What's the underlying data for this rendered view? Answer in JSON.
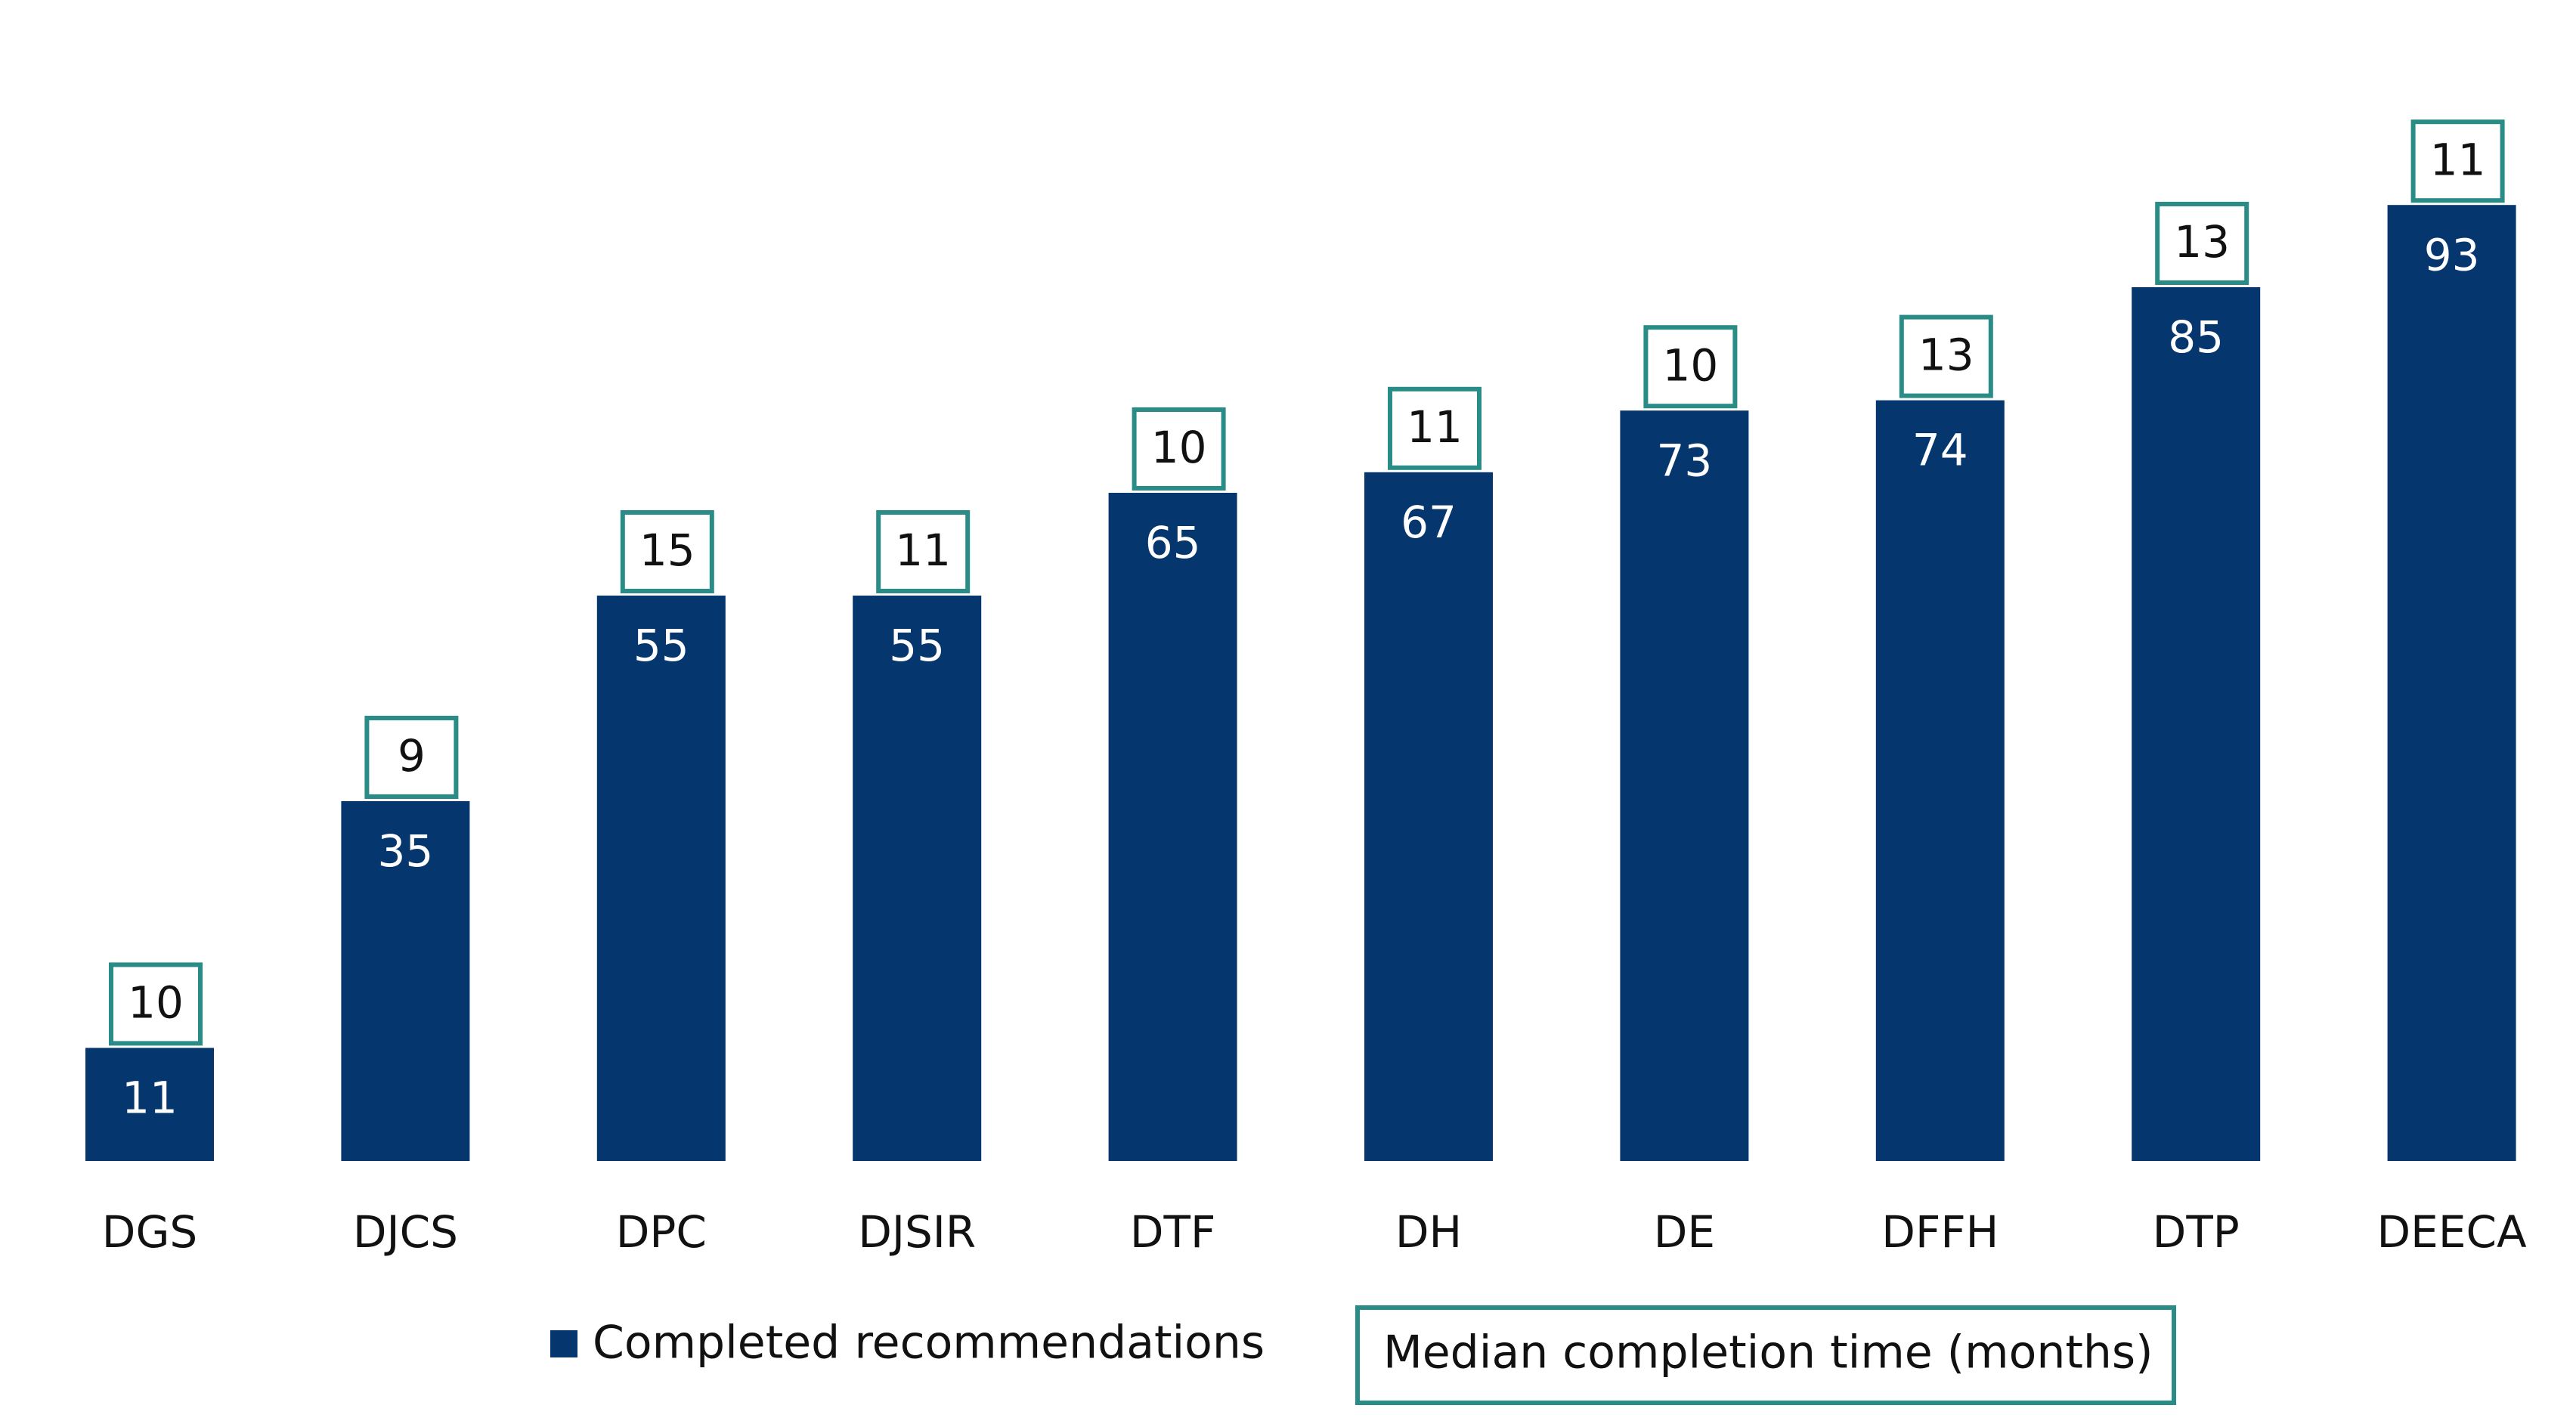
{
  "chart_data": {
    "type": "bar",
    "categories": [
      "DGS",
      "DJCS",
      "DPC",
      "DJSIR",
      "DTF",
      "DH",
      "DE",
      "DFFH",
      "DTP",
      "DEECA"
    ],
    "series": [
      {
        "name": "Completed recommendations",
        "values": [
          11,
          35,
          55,
          55,
          65,
          67,
          73,
          74,
          85,
          93
        ],
        "color": "#06366e"
      },
      {
        "name": "Median completion time (months)",
        "values": [
          10,
          9,
          15,
          11,
          10,
          11,
          10,
          13,
          13,
          11
        ],
        "color": "#2a8c86"
      }
    ],
    "title": "",
    "xlabel": "",
    "ylabel": "",
    "ylim": [
      0,
      100
    ],
    "grid": false,
    "legend": "bottom"
  }
}
